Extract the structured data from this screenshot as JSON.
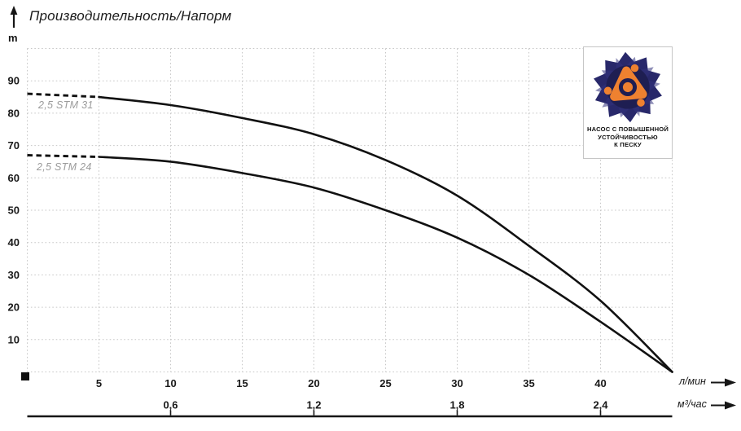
{
  "header": {
    "title": "Производительность/Напорм",
    "y_unit": "m"
  },
  "axis_units": {
    "primary": "л/мин",
    "secondary": "м³/час"
  },
  "badge": {
    "lines": [
      "НАСОС С ПОВЫШЕННОЙ",
      "УСТОЙЧИВОСТЬЮ",
      "К ПЕСКУ"
    ],
    "colors": {
      "navy": "#28286a",
      "navy_dark": "#1e1e52",
      "orange": "#ee8130"
    }
  },
  "colors": {
    "curve": "#111111",
    "grid": "#c7c7c7",
    "tick_text": "#191919",
    "curve_label_text": "#9b9b9b",
    "secondary_axis_line": "#161616"
  },
  "chart_data": {
    "type": "line",
    "title": "Производительность/Напорм",
    "ylabel": "m",
    "xlim": [
      0,
      45
    ],
    "ylim": [
      0,
      100
    ],
    "grid": {
      "x_step": 5,
      "y_step": 10,
      "style": "dotted",
      "on": true
    },
    "legend_position": "inline-left",
    "y_ticks": [
      10,
      20,
      30,
      40,
      50,
      60,
      70,
      80,
      90
    ],
    "x_axis_primary": {
      "label": "л/мин",
      "ticks": [
        5,
        10,
        15,
        20,
        25,
        30,
        35,
        40
      ]
    },
    "x_axis_secondary": {
      "label": "м³/час",
      "ticks": [
        {
          "q": 10,
          "label": "0,6"
        },
        {
          "q": 20,
          "label": "1,2"
        },
        {
          "q": 30,
          "label": "1,8"
        },
        {
          "q": 40,
          "label": "2,4"
        }
      ]
    },
    "series": [
      {
        "name": "2,5 STM 31",
        "color": "#111111",
        "dash_until_index": 1,
        "points": [
          [
            0,
            86
          ],
          [
            5,
            85
          ],
          [
            10,
            82.5
          ],
          [
            15,
            78.5
          ],
          [
            20,
            73.5
          ],
          [
            25,
            65.5
          ],
          [
            30,
            54.5
          ],
          [
            35,
            39
          ],
          [
            40,
            22
          ],
          [
            45,
            0
          ]
        ]
      },
      {
        "name": "2,5 STM 24",
        "color": "#111111",
        "dash_until_index": 1,
        "points": [
          [
            0,
            67
          ],
          [
            5,
            66.5
          ],
          [
            10,
            65
          ],
          [
            15,
            61.5
          ],
          [
            20,
            57
          ],
          [
            25,
            50
          ],
          [
            30,
            41.5
          ],
          [
            35,
            30
          ],
          [
            40,
            15.5
          ],
          [
            45,
            0
          ]
        ]
      }
    ]
  }
}
